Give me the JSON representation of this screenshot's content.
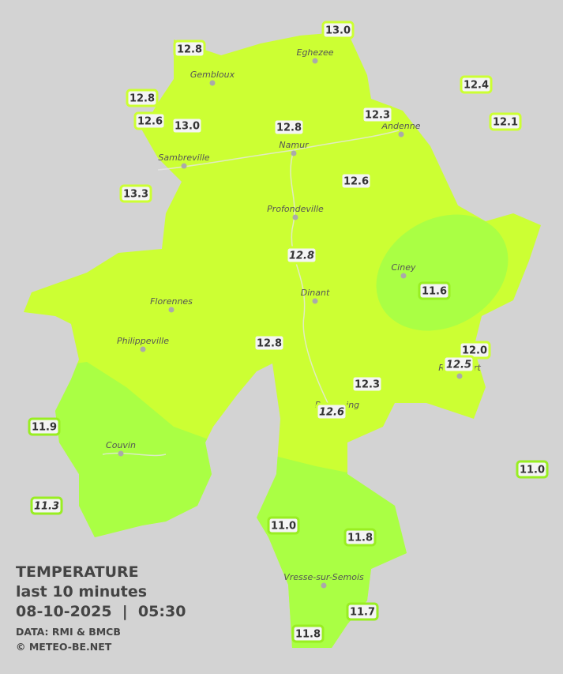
{
  "title": "TEMPERATURE",
  "subtitle": "last 10 minutes",
  "datetime": "08-10-2025  |  05:30",
  "source": "DATA: RMI & BMCB",
  "credit": "© METEO-BE.NET",
  "towns": [
    "Eghezee",
    "Gembloux",
    "Andenne",
    "Namur",
    "Sambreville",
    "Profondeville",
    "Ciney",
    "Dinant",
    "Florennes",
    "Philippeville",
    "Rochefort",
    "Beauraing",
    "Couvin",
    "Vresse-sur-Semois"
  ],
  "readings": [
    "12.8",
    "13.0",
    "12.4",
    "12.8",
    "12.3",
    "12.1",
    "12.6",
    "13.0",
    "12.8",
    "13.3",
    "12.6",
    "12.8",
    "11.6",
    "12.8",
    "12.0",
    "12.5",
    "12.3",
    "12.6",
    "11.9",
    "11.0",
    "11.3",
    "11.0",
    "11.8",
    "11.7",
    "11.8"
  ]
}
